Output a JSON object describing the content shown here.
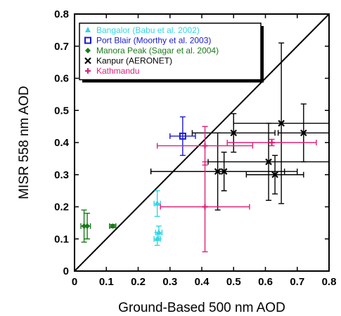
{
  "chart_data": {
    "type": "scatter",
    "title": "",
    "xlabel": "Ground-Based 500 nm AOD",
    "ylabel": "MISR 558 nm AOD",
    "xlim": [
      0,
      0.8
    ],
    "ylim": [
      0,
      0.8
    ],
    "xticks": [
      "0",
      "0.1",
      "0.2",
      "0.3",
      "0.4",
      "0.5",
      "0.6",
      "0.7",
      "0.8"
    ],
    "yticks": [
      "0",
      "0.1",
      "0.2",
      "0.3",
      "0.4",
      "0.5",
      "0.6",
      "0.7",
      "0.8"
    ],
    "one_to_one_line": true,
    "grid": false,
    "legend_position": "top-left",
    "series": [
      {
        "name": "Bangalor (Babu et al. 2002)",
        "color": "#33d6e6",
        "marker": "triangle",
        "points": [
          {
            "x": 0.26,
            "y": 0.21,
            "xerr": 0.01,
            "yerr": 0.04
          },
          {
            "x": 0.265,
            "y": 0.12,
            "xerr": 0.01,
            "yerr": 0.02
          },
          {
            "x": 0.26,
            "y": 0.1,
            "xerr": 0.01,
            "yerr": 0.02
          }
        ]
      },
      {
        "name": "Port Blair (Moorthy et al. 2003)",
        "color": "#1a1acc",
        "marker": "square",
        "points": [
          {
            "x": 0.34,
            "y": 0.42,
            "xerr": 0.04,
            "yerr": 0.06
          }
        ]
      },
      {
        "name": "Manora Peak (Sagar et al. 2004)",
        "color": "#1a7a1a",
        "marker": "diamond",
        "points": [
          {
            "x": 0.03,
            "y": 0.14,
            "xerr": 0.01,
            "yerr": 0.05
          },
          {
            "x": 0.04,
            "y": 0.14,
            "xerr": 0.01,
            "yerr": 0.04
          },
          {
            "x": 0.12,
            "y": 0.14,
            "xerr": 0.01,
            "yerr": 0.005
          }
        ]
      },
      {
        "name": "Kanpur (AERONET)",
        "color": "#000000",
        "marker": "x",
        "points": [
          {
            "x": 0.45,
            "y": 0.31,
            "xerr": 0.21,
            "yerr": 0.12
          },
          {
            "x": 0.47,
            "y": 0.31,
            "xerr": 0.23,
            "yerr": 0.06
          },
          {
            "x": 0.5,
            "y": 0.43,
            "xerr": 0.13,
            "yerr": 0.06
          },
          {
            "x": 0.61,
            "y": 0.34,
            "xerr": 0.19,
            "yerr": 0.12
          },
          {
            "x": 0.63,
            "y": 0.3,
            "xerr": 0.09,
            "yerr": 0.06
          },
          {
            "x": 0.65,
            "y": 0.46,
            "xerr": 0.15,
            "yerr": 0.25
          },
          {
            "x": 0.72,
            "y": 0.43,
            "xerr": 0.08,
            "yerr": 0.09
          }
        ]
      },
      {
        "name": "Kathmandu",
        "color": "#e0207a",
        "marker": "plus",
        "points": [
          {
            "x": 0.41,
            "y": 0.39,
            "xerr": 0.15,
            "yerr": 0.06
          },
          {
            "x": 0.41,
            "y": 0.2,
            "xerr": 0.14,
            "yerr": 0.14
          },
          {
            "x": 0.62,
            "y": 0.4,
            "xerr": 0.14,
            "yerr": 0.01
          }
        ]
      }
    ]
  }
}
